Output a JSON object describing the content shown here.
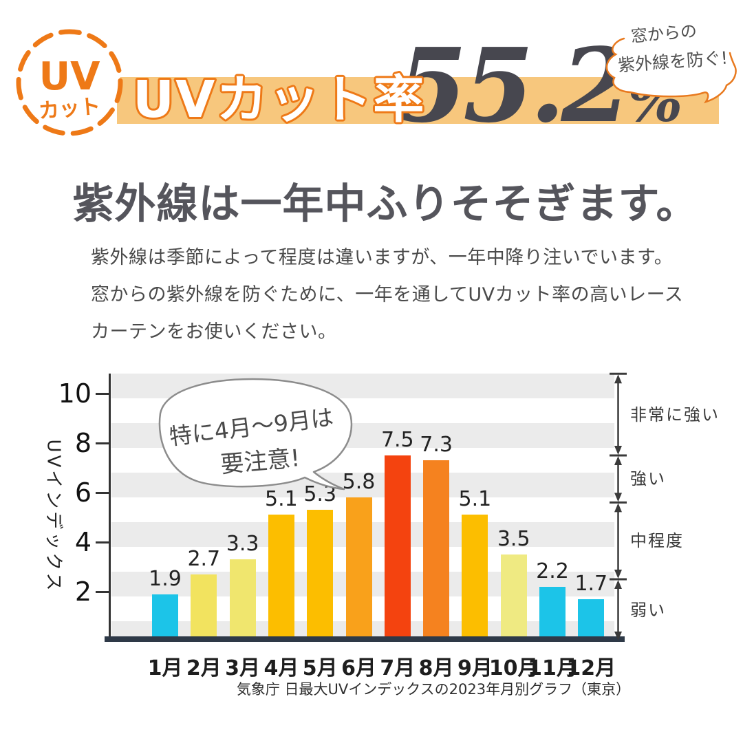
{
  "badge": {
    "line1": "UV",
    "line2": "カット"
  },
  "header": {
    "banner_label": "UVカット率",
    "value": "55.2",
    "unit": "%",
    "note_line1": "窓からの",
    "note_line2": "紫外線を防ぐ!"
  },
  "headline": "紫外線は一年中ふりそそぎます。",
  "body_lines": [
    "紫外線は季節によって程度は違いますが、一年中降り注いでいます。",
    "窓からの紫外線を防ぐために、一年を通してUVカット率の高いレース",
    "カーテンをお使いください。"
  ],
  "colors": {
    "accent_orange": "#EE7917",
    "banner_bg": "#F7C77D",
    "value_gray": "#47474F",
    "stripe_gray": "#EBEBEB",
    "axis_dark": "#2E3947"
  },
  "chart_data": {
    "type": "bar",
    "title": "",
    "categories": [
      "1月",
      "2月",
      "3月",
      "4月",
      "5月",
      "6月",
      "7月",
      "8月",
      "9月",
      "10月",
      "11月",
      "12月"
    ],
    "values": [
      1.9,
      2.7,
      3.3,
      5.1,
      5.3,
      5.8,
      7.5,
      7.3,
      5.1,
      3.5,
      2.2,
      1.7
    ],
    "bar_colors": [
      "#1CC4E8",
      "#F2E35F",
      "#F0E66E",
      "#FCBE00",
      "#FCBE00",
      "#F9A11B",
      "#F4430F",
      "#F5821F",
      "#FCBE00",
      "#EFEA82",
      "#1CC4E8",
      "#1CC4E8"
    ],
    "ylabel": "UVインデックス",
    "xlabel": "",
    "yticks": [
      2,
      4,
      6,
      8,
      10
    ],
    "ylim": [
      0,
      10.8
    ],
    "grid_stripes": true,
    "stripe_color": "#EBEBEB",
    "legend": "none",
    "annotation": {
      "line1": "特に4月〜9月は",
      "line2": "要注意!"
    },
    "zones": [
      {
        "label": "非常に強い",
        "from": 7.5,
        "to": 10.8
      },
      {
        "label": "強い",
        "from": 5.6,
        "to": 7.5
      },
      {
        "label": "中程度",
        "from": 2.5,
        "to": 5.6
      },
      {
        "label": "弱い",
        "from": 0,
        "to": 2.5
      }
    ],
    "caption": "気象庁 日最大UVインデックスの2023年月別グラフ（東京）"
  }
}
